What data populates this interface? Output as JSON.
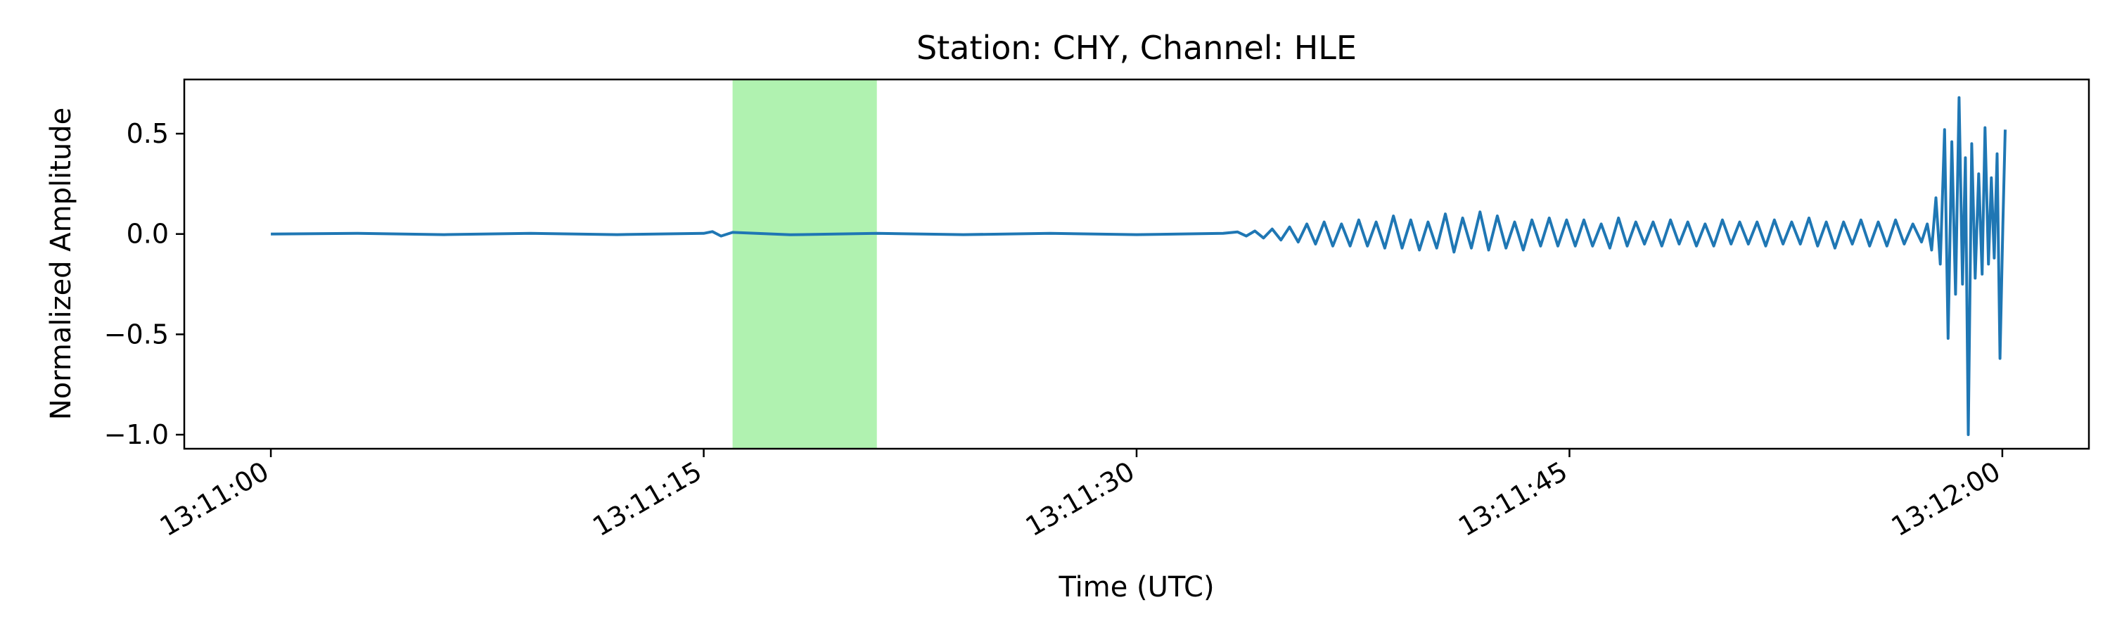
{
  "chart_data": {
    "type": "line",
    "title": "Station: CHY, Channel: HLE",
    "xlabel": "Time (UTC)",
    "ylabel": "Normalized Amplitude",
    "x_unit": "seconds after 13:11:00 UTC",
    "xlim": [
      -3,
      63
    ],
    "ylim": [
      -1.07,
      0.77
    ],
    "x_ticks": [
      {
        "value": 0,
        "label": "13:11:00"
      },
      {
        "value": 15,
        "label": "13:11:15"
      },
      {
        "value": 30,
        "label": "13:11:30"
      },
      {
        "value": 45,
        "label": "13:11:45"
      },
      {
        "value": 60,
        "label": "13:12:00"
      }
    ],
    "y_ticks": [
      {
        "value": 0.5,
        "label": "0.5"
      },
      {
        "value": 0.0,
        "label": "0.0"
      },
      {
        "value": -0.5,
        "label": "−0.5"
      },
      {
        "value": -1.0,
        "label": "−1.0"
      }
    ],
    "grid": false,
    "highlight": {
      "x_start": 16.0,
      "x_end": 21.0,
      "color": "#b0f2b0"
    },
    "series": [
      {
        "color": "#1f77b4",
        "points": [
          [
            0.0,
            0.0
          ],
          [
            3.0,
            0.003
          ],
          [
            6.0,
            -0.003
          ],
          [
            9.0,
            0.003
          ],
          [
            12.0,
            -0.003
          ],
          [
            15.0,
            0.003
          ],
          [
            15.3,
            0.012
          ],
          [
            15.6,
            -0.01
          ],
          [
            16.0,
            0.008
          ],
          [
            18.0,
            -0.004
          ],
          [
            21.0,
            0.003
          ],
          [
            24.0,
            -0.003
          ],
          [
            27.0,
            0.003
          ],
          [
            30.0,
            -0.003
          ],
          [
            33.0,
            0.003
          ],
          [
            33.5,
            0.01
          ],
          [
            33.8,
            -0.01
          ],
          [
            34.1,
            0.015
          ],
          [
            34.4,
            -0.02
          ],
          [
            34.7,
            0.025
          ],
          [
            35.0,
            -0.03
          ],
          [
            35.3,
            0.035
          ],
          [
            35.6,
            -0.04
          ],
          [
            35.9,
            0.05
          ],
          [
            36.2,
            -0.05
          ],
          [
            36.5,
            0.06
          ],
          [
            36.8,
            -0.06
          ],
          [
            37.1,
            0.05
          ],
          [
            37.4,
            -0.06
          ],
          [
            37.7,
            0.07
          ],
          [
            38.0,
            -0.06
          ],
          [
            38.3,
            0.06
          ],
          [
            38.6,
            -0.07
          ],
          [
            38.9,
            0.09
          ],
          [
            39.2,
            -0.07
          ],
          [
            39.5,
            0.07
          ],
          [
            39.8,
            -0.08
          ],
          [
            40.1,
            0.06
          ],
          [
            40.4,
            -0.07
          ],
          [
            40.7,
            0.1
          ],
          [
            41.0,
            -0.09
          ],
          [
            41.3,
            0.08
          ],
          [
            41.6,
            -0.07
          ],
          [
            41.9,
            0.11
          ],
          [
            42.2,
            -0.08
          ],
          [
            42.5,
            0.09
          ],
          [
            42.8,
            -0.07
          ],
          [
            43.1,
            0.06
          ],
          [
            43.4,
            -0.08
          ],
          [
            43.7,
            0.07
          ],
          [
            44.0,
            -0.06
          ],
          [
            44.3,
            0.08
          ],
          [
            44.6,
            -0.06
          ],
          [
            44.9,
            0.07
          ],
          [
            45.2,
            -0.06
          ],
          [
            45.5,
            0.07
          ],
          [
            45.8,
            -0.06
          ],
          [
            46.1,
            0.05
          ],
          [
            46.4,
            -0.07
          ],
          [
            46.7,
            0.08
          ],
          [
            47.0,
            -0.06
          ],
          [
            47.3,
            0.06
          ],
          [
            47.6,
            -0.05
          ],
          [
            47.9,
            0.06
          ],
          [
            48.2,
            -0.06
          ],
          [
            48.5,
            0.07
          ],
          [
            48.8,
            -0.05
          ],
          [
            49.1,
            0.06
          ],
          [
            49.4,
            -0.06
          ],
          [
            49.7,
            0.05
          ],
          [
            50.0,
            -0.06
          ],
          [
            50.3,
            0.07
          ],
          [
            50.6,
            -0.05
          ],
          [
            50.9,
            0.06
          ],
          [
            51.2,
            -0.05
          ],
          [
            51.5,
            0.06
          ],
          [
            51.8,
            -0.06
          ],
          [
            52.1,
            0.07
          ],
          [
            52.4,
            -0.05
          ],
          [
            52.7,
            0.06
          ],
          [
            53.0,
            -0.05
          ],
          [
            53.3,
            0.08
          ],
          [
            53.6,
            -0.06
          ],
          [
            53.9,
            0.06
          ],
          [
            54.2,
            -0.07
          ],
          [
            54.5,
            0.06
          ],
          [
            54.8,
            -0.05
          ],
          [
            55.1,
            0.07
          ],
          [
            55.4,
            -0.06
          ],
          [
            55.7,
            0.06
          ],
          [
            56.0,
            -0.06
          ],
          [
            56.3,
            0.07
          ],
          [
            56.6,
            -0.05
          ],
          [
            56.9,
            0.05
          ],
          [
            57.2,
            -0.04
          ],
          [
            57.4,
            0.05
          ],
          [
            57.55,
            -0.08
          ],
          [
            57.7,
            0.18
          ],
          [
            57.85,
            -0.15
          ],
          [
            58.0,
            0.52
          ],
          [
            58.12,
            -0.52
          ],
          [
            58.25,
            0.46
          ],
          [
            58.38,
            -0.3
          ],
          [
            58.5,
            0.68
          ],
          [
            58.62,
            -0.25
          ],
          [
            58.72,
            0.38
          ],
          [
            58.82,
            -1.0
          ],
          [
            58.94,
            0.45
          ],
          [
            59.06,
            -0.22
          ],
          [
            59.18,
            0.3
          ],
          [
            59.3,
            -0.2
          ],
          [
            59.4,
            0.53
          ],
          [
            59.52,
            -0.15
          ],
          [
            59.62,
            0.28
          ],
          [
            59.72,
            -0.12
          ],
          [
            59.82,
            0.4
          ],
          [
            59.92,
            -0.62
          ],
          [
            60.02,
            0.05
          ],
          [
            60.1,
            0.52
          ]
        ]
      }
    ]
  }
}
